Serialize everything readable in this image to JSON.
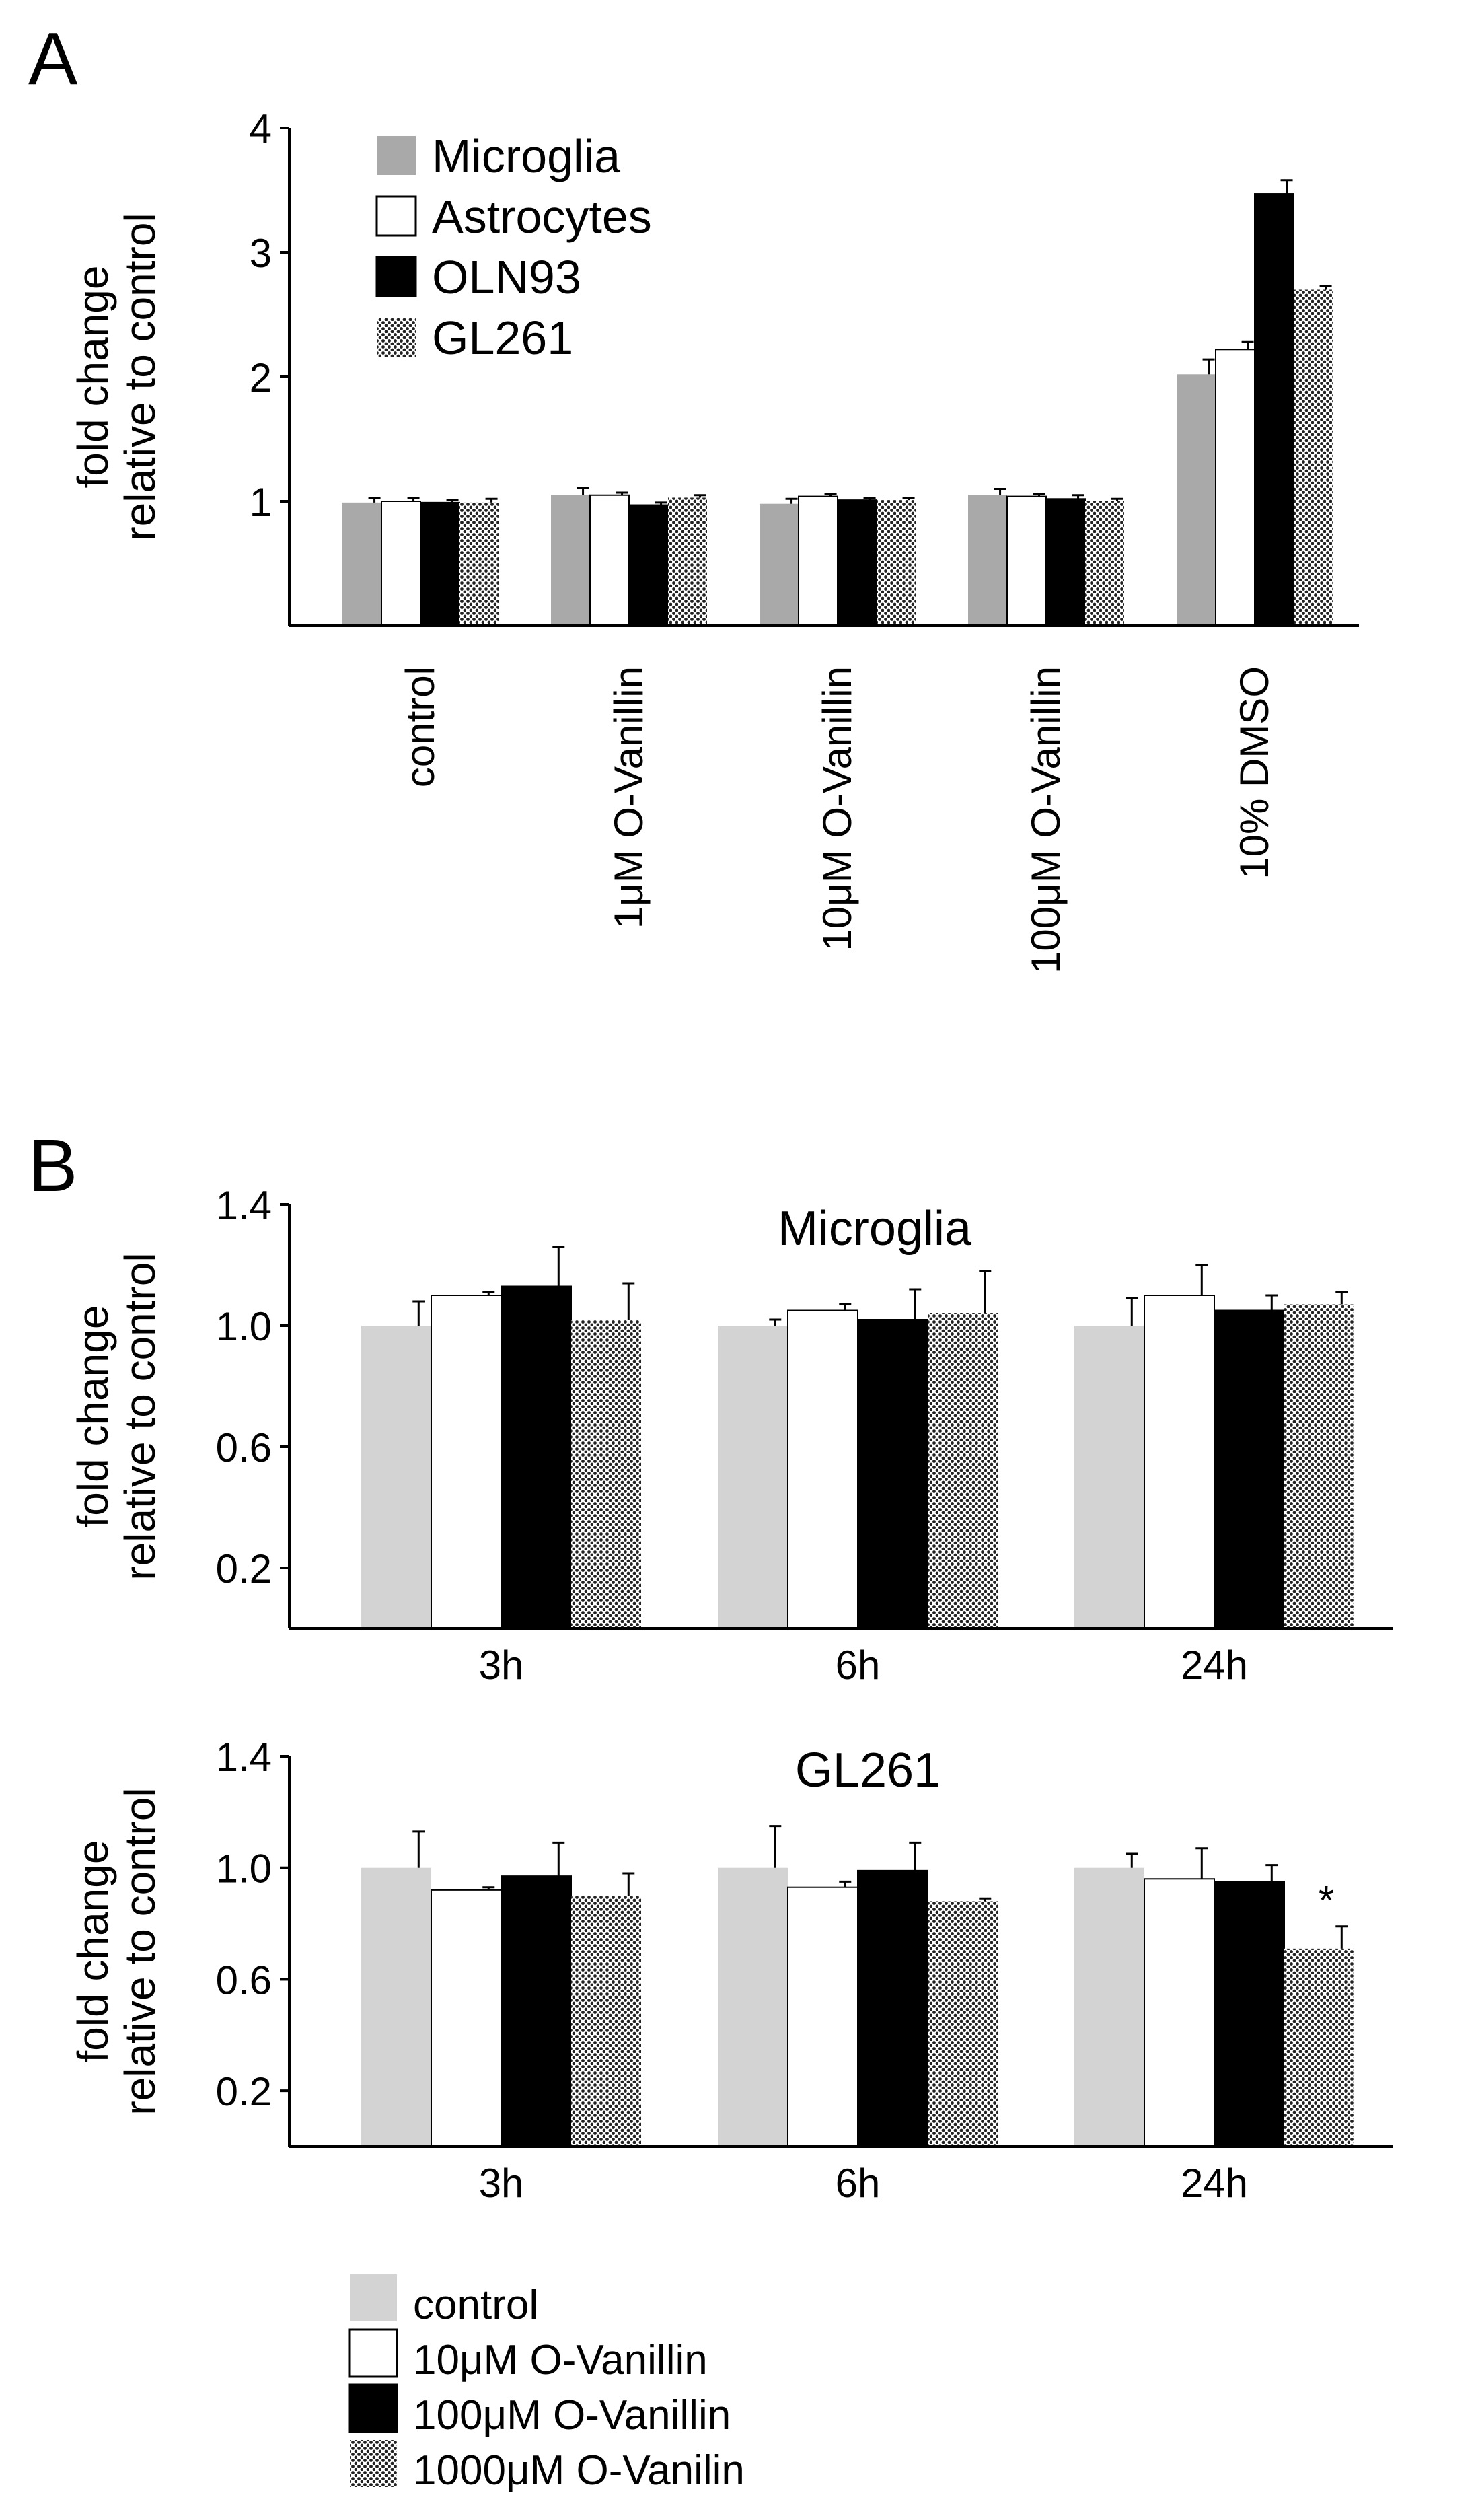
{
  "figure": {
    "panel_a_letter": "A",
    "panel_b_letter": "B"
  },
  "colors": {
    "gray": "#a9a9a9",
    "light_gray": "#d3d3d3",
    "white": "#ffffff",
    "black": "#000000"
  },
  "legend_a": [
    {
      "label": "Microglia",
      "fill": "gray"
    },
    {
      "label": "Astrocytes",
      "fill": "white"
    },
    {
      "label": "OLN93",
      "fill": "black"
    },
    {
      "label": "GL261",
      "fill": "dots"
    }
  ],
  "legend_b": [
    {
      "label": "control",
      "fill": "lightgray"
    },
    {
      "label": "10μM O-Vanillin",
      "fill": "white"
    },
    {
      "label": "100μM O-Vanillin",
      "fill": "black"
    },
    {
      "label": "1000μM O-Vanilin",
      "fill": "dots"
    }
  ],
  "chart_data": [
    {
      "id": "A",
      "type": "bar",
      "title": "",
      "ylabel": "fold change relative to control",
      "ylabel_lines": [
        "fold  change",
        "relative to control"
      ],
      "xlabel": "",
      "ylim": [
        0,
        4
      ],
      "yticks": [
        1,
        2,
        3,
        4
      ],
      "ytick_labels": [
        "1",
        "2",
        "3",
        "4"
      ],
      "categories": [
        "control",
        "1μM O-Vanillin",
        "10μM O-Vanillin",
        "100μM O-Vanillin",
        "10% DMSO"
      ],
      "series": [
        {
          "name": "Microglia",
          "fill": "gray",
          "values": [
            0.99,
            1.05,
            0.98,
            1.05,
            2.02
          ],
          "errors": [
            0.04,
            0.06,
            0.04,
            0.05,
            0.12
          ]
        },
        {
          "name": "Astrocytes",
          "fill": "white",
          "values": [
            1.0,
            1.05,
            1.04,
            1.04,
            2.22
          ],
          "errors": [
            0.03,
            0.02,
            0.02,
            0.02,
            0.06
          ]
        },
        {
          "name": "OLN93",
          "fill": "black",
          "values": [
            0.99,
            0.97,
            1.01,
            1.02,
            3.47
          ],
          "errors": [
            0.02,
            0.02,
            0.02,
            0.03,
            0.11
          ]
        },
        {
          "name": "GL261",
          "fill": "dots",
          "values": [
            0.99,
            1.03,
            1.01,
            1.0,
            2.7
          ],
          "errors": [
            0.03,
            0.02,
            0.02,
            0.02,
            0.03
          ]
        }
      ],
      "annotations": []
    },
    {
      "id": "B-Microglia",
      "type": "bar",
      "title": "Microglia",
      "ylabel": "fold change relative to control",
      "ylabel_lines": [
        "fold  change",
        "relative to control"
      ],
      "xlabel": "",
      "ylim": [
        0,
        1.4
      ],
      "yticks": [
        0.2,
        0.6,
        1.0,
        1.4
      ],
      "ytick_labels": [
        "0.2",
        "0.6",
        "1.0",
        "1.4"
      ],
      "categories": [
        "3h",
        "6h",
        "24h"
      ],
      "series": [
        {
          "name": "control",
          "fill": "lightgray",
          "values": [
            1.0,
            1.0,
            1.0
          ],
          "errors": [
            0.08,
            0.02,
            0.09
          ]
        },
        {
          "name": "10μM O-Vanillin",
          "fill": "white",
          "values": [
            1.1,
            1.05,
            1.1
          ],
          "errors": [
            0.01,
            0.02,
            0.1
          ]
        },
        {
          "name": "100μM O-Vanillin",
          "fill": "black",
          "values": [
            1.13,
            1.02,
            1.05
          ],
          "errors": [
            0.13,
            0.1,
            0.05
          ]
        },
        {
          "name": "1000μM O-Vanilin",
          "fill": "dots",
          "values": [
            1.02,
            1.04,
            1.07
          ],
          "errors": [
            0.12,
            0.14,
            0.04
          ]
        }
      ],
      "annotations": []
    },
    {
      "id": "B-GL261",
      "type": "bar",
      "title": "GL261",
      "ylabel": "fold change relative to control",
      "ylabel_lines": [
        "fold  change",
        "relative to control"
      ],
      "xlabel": "",
      "ylim": [
        0,
        1.4
      ],
      "yticks": [
        0.2,
        0.6,
        1.0,
        1.4
      ],
      "ytick_labels": [
        "0.2",
        "0.6",
        "1.0",
        "1.4"
      ],
      "categories": [
        "3h",
        "6h",
        "24h"
      ],
      "series": [
        {
          "name": "control",
          "fill": "lightgray",
          "values": [
            1.0,
            1.0,
            1.0
          ],
          "errors": [
            0.13,
            0.15,
            0.05
          ]
        },
        {
          "name": "10μM O-Vanillin",
          "fill": "white",
          "values": [
            0.92,
            0.93,
            0.96
          ],
          "errors": [
            0.01,
            0.02,
            0.11
          ]
        },
        {
          "name": "100μM O-Vanillin",
          "fill": "black",
          "values": [
            0.97,
            0.99,
            0.95
          ],
          "errors": [
            0.12,
            0.1,
            0.06
          ]
        },
        {
          "name": "1000μM O-Vanilin",
          "fill": "dots",
          "values": [
            0.9,
            0.88,
            0.71
          ],
          "errors": [
            0.08,
            0.01,
            0.08
          ]
        }
      ],
      "annotations": [
        {
          "text": "*",
          "category": "24h",
          "series": "1000μM O-Vanilin"
        }
      ]
    }
  ]
}
